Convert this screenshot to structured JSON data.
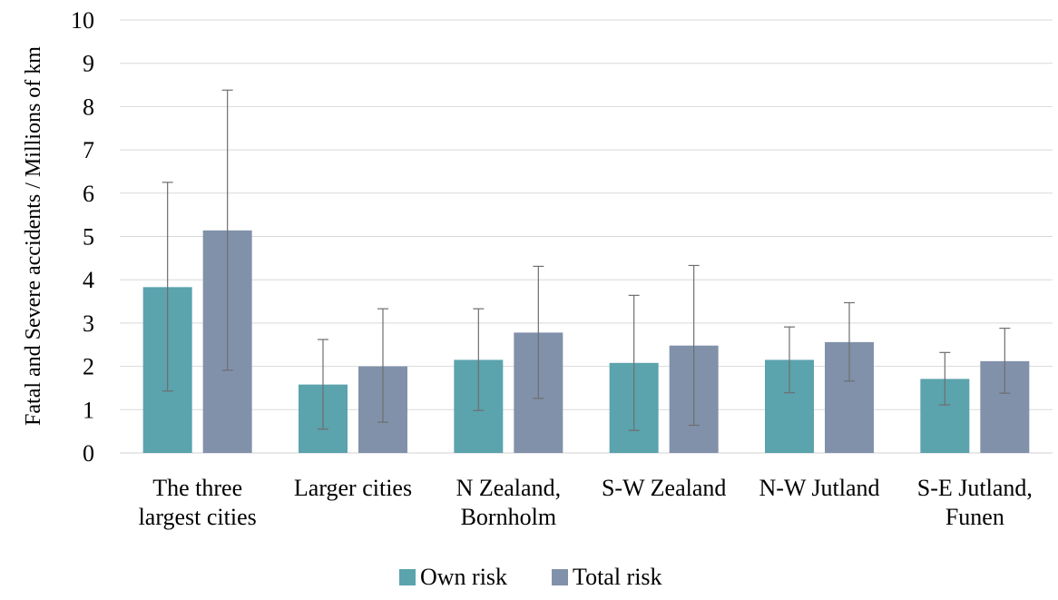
{
  "chart_data": {
    "type": "bar",
    "title": "",
    "xlabel": "",
    "ylabel": "Fatal and Severe accidents / Millions of km",
    "ylim": [
      0,
      10
    ],
    "yticks": [
      "0",
      "1",
      "2",
      "3",
      "4",
      "5",
      "6",
      "7",
      "8",
      "9",
      "10"
    ],
    "grid": true,
    "legend_position": "bottom",
    "categories": [
      [
        "The three",
        "largest cities"
      ],
      [
        "Larger cities"
      ],
      [
        "N Zealand,",
        "Bornholm"
      ],
      [
        "S-W Zealand"
      ],
      [
        "N-W Jutland"
      ],
      [
        "S-E Jutland,",
        "Funen"
      ]
    ],
    "series": [
      {
        "name": "Own risk",
        "color": "#5ba3ad",
        "values": [
          3.83,
          1.58,
          2.15,
          2.08,
          2.15,
          1.71
        ],
        "error_low": [
          1.43,
          0.55,
          0.98,
          0.52,
          1.39,
          1.11
        ],
        "error_high": [
          6.25,
          2.62,
          3.33,
          3.64,
          2.91,
          2.32
        ]
      },
      {
        "name": "Total risk",
        "color": "#8191aa",
        "values": [
          5.14,
          2.0,
          2.78,
          2.48,
          2.56,
          2.12
        ],
        "error_low": [
          1.91,
          0.71,
          1.26,
          0.64,
          1.66,
          1.38
        ],
        "error_high": [
          8.38,
          3.33,
          4.31,
          4.33,
          3.47,
          2.88
        ]
      }
    ]
  }
}
